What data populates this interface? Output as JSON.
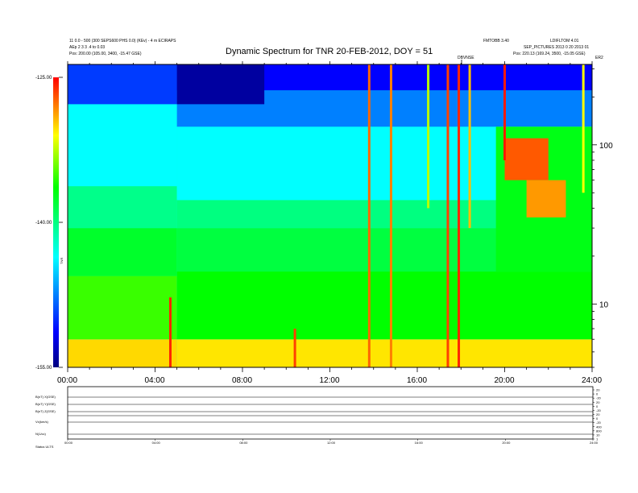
{
  "header": {
    "left_line1": "11 0.0 - 500 (300 SEPS600 PHS 0.0) (KEv) - 4 m ECIRAPS",
    "left_line2": "AEp 2 3 3 .4 to 0.03",
    "left_line3": "Pos:   200.00 (105.00, 3400, -15.47 GSE)",
    "right_line1a": "FMTOBB 3.40",
    "right_line1b": "LDIFLTOM 4.01",
    "right_line2": "SEP_PICTURES 2013 0 20 2013 01",
    "right_line3": "Pos:   220.13 (169.24, 3500, -15.05 GSE)",
    "right_corner": "ER2",
    "marker_label": "DBVNSE"
  },
  "title": "Dynamic Spectrum for TNR 20-FEB-2012, DOY = 51",
  "colorbar": {
    "title": "TNR",
    "tick_labels": [
      "-125.00",
      "-140.00",
      "-155.00"
    ]
  },
  "lower_panels": {
    "left_labels": [
      "B(nT) X(GSE)",
      "B(nT) Y(GSE)",
      "B(nT) Z(GSE)",
      "Vx(km/s)",
      "N(1/cc)"
    ],
    "footer_label": "Status   ULTS",
    "right_labels": [
      "20",
      "0",
      "-20",
      "20",
      "0",
      "-20",
      "20",
      "0",
      "-20",
      "400",
      "800",
      "10",
      "1"
    ],
    "x_tick_labels": [
      "00:00",
      "04:00",
      "08:00",
      "12:00",
      "16:00",
      "20:00",
      "24:00"
    ]
  },
  "chart_data": {
    "type": "heatmap",
    "title": "Dynamic Spectrum for TNR 20-FEB-2012, DOY = 51",
    "xlabel": "",
    "ylabel": "",
    "x_tick_labels": [
      "00:00",
      "04:00",
      "08:00",
      "12:00",
      "16:00",
      "20:00",
      "24:00"
    ],
    "xlim_hours": [
      0,
      24
    ],
    "y_scale": "log",
    "y_tick_labels": [
      "10",
      "100"
    ],
    "ylim": [
      4,
      320
    ],
    "colorbar_range": [
      -155,
      -125
    ],
    "colormap": [
      "#000080",
      "#0000ff",
      "#00ffff",
      "#00ff00",
      "#ffff00",
      "#ff0000"
    ],
    "bands": [
      {
        "t0": 0,
        "t1": 5,
        "f0": 4,
        "f1": 6,
        "level": 0.83
      },
      {
        "t0": 0,
        "t1": 5,
        "f0": 6,
        "f1": 15,
        "level": 0.66
      },
      {
        "t0": 0,
        "t1": 5,
        "f0": 15,
        "f1": 30,
        "level": 0.58
      },
      {
        "t0": 0,
        "t1": 5,
        "f0": 30,
        "f1": 55,
        "level": 0.49
      },
      {
        "t0": 0,
        "t1": 5,
        "f0": 55,
        "f1": 180,
        "level": 0.38
      },
      {
        "t0": 0,
        "t1": 5,
        "f0": 180,
        "f1": 320,
        "level": 0.18
      },
      {
        "t0": 5,
        "t1": 24,
        "f0": 4,
        "f1": 6,
        "level": 0.82
      },
      {
        "t0": 5,
        "t1": 24,
        "f0": 6,
        "f1": 16,
        "level": 0.62
      },
      {
        "t0": 5,
        "t1": 24,
        "f0": 16,
        "f1": 30,
        "level": 0.56
      },
      {
        "t0": 5,
        "t1": 24,
        "f0": 30,
        "f1": 45,
        "level": 0.5
      },
      {
        "t0": 5,
        "t1": 24,
        "f0": 45,
        "f1": 130,
        "level": 0.38
      },
      {
        "t0": 5,
        "t1": 24,
        "f0": 130,
        "f1": 220,
        "level": 0.25
      },
      {
        "t0": 5,
        "t1": 24,
        "f0": 220,
        "f1": 320,
        "level": 0.12
      },
      {
        "t0": 5,
        "t1": 9,
        "f0": 180,
        "f1": 320,
        "level": 0.03
      },
      {
        "t0": 19.6,
        "t1": 24,
        "f0": 16,
        "f1": 130,
        "level": 0.6
      },
      {
        "t0": 20,
        "t1": 22,
        "f0": 60,
        "f1": 110,
        "level": 0.93
      },
      {
        "t0": 21,
        "t1": 22.8,
        "f0": 35,
        "f1": 60,
        "level": 0.88
      }
    ],
    "bursts": [
      {
        "t": 4.7,
        "f_low": 4,
        "f_high": 11,
        "level": 0.97
      },
      {
        "t": 10.4,
        "f_low": 4,
        "f_high": 7,
        "level": 0.95
      },
      {
        "t": 13.8,
        "f_low": 4,
        "f_high": 320,
        "level": 0.92
      },
      {
        "t": 14.8,
        "f_low": 4,
        "f_high": 320,
        "level": 0.9
      },
      {
        "t": 16.5,
        "f_low": 40,
        "f_high": 320,
        "level": 0.75
      },
      {
        "t": 17.4,
        "f_low": 4,
        "f_high": 320,
        "level": 0.95
      },
      {
        "t": 17.9,
        "f_low": 4,
        "f_high": 320,
        "level": 0.97
      },
      {
        "t": 18.4,
        "f_low": 30,
        "f_high": 320,
        "level": 0.85
      },
      {
        "t": 20.0,
        "f_low": 80,
        "f_high": 320,
        "level": 0.98
      },
      {
        "t": 23.6,
        "f_low": 50,
        "f_high": 320,
        "level": 0.8
      }
    ]
  },
  "colors": {
    "axis": "#000000",
    "background": "#ffffff"
  }
}
